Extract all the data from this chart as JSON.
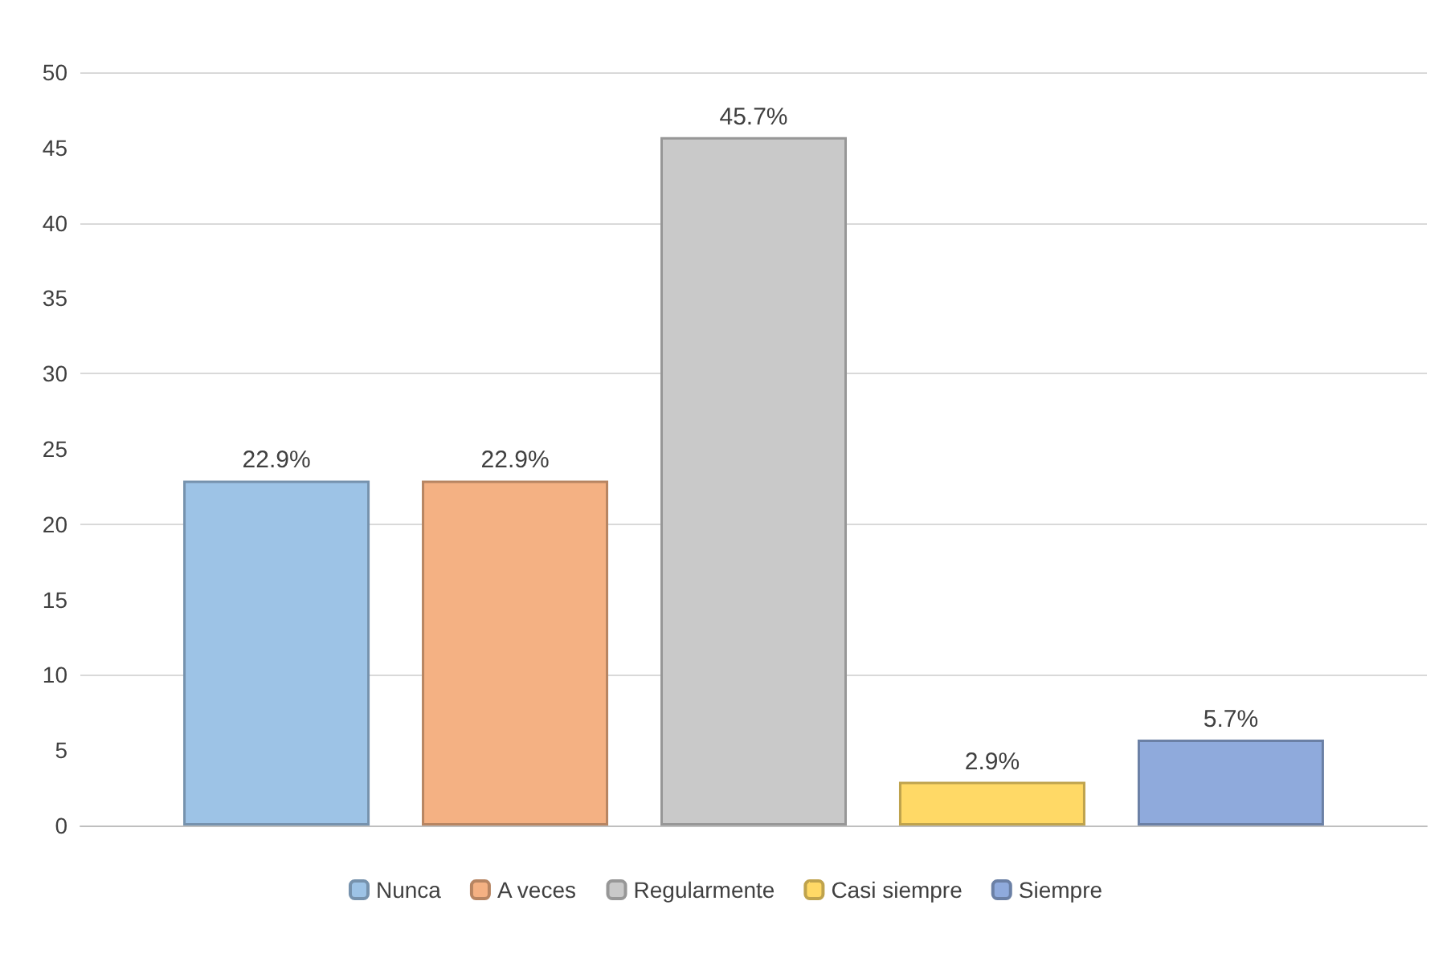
{
  "chart_data": {
    "type": "bar",
    "categories": [
      null
    ],
    "series": [
      {
        "name": "Nunca",
        "color": "#9dc3e6",
        "values": [
          22.9
        ],
        "value_labels": [
          "22.9%"
        ]
      },
      {
        "name": "A veces",
        "color": "#f4b183",
        "values": [
          22.9
        ],
        "value_labels": [
          "22.9%"
        ]
      },
      {
        "name": "Regularmente",
        "color": "#c9c9c9",
        "values": [
          45.7
        ],
        "value_labels": [
          "45.7%"
        ]
      },
      {
        "name": "Casi siempre",
        "color": "#ffd966",
        "values": [
          2.9
        ],
        "value_labels": [
          "2.9%"
        ]
      },
      {
        "name": "Siempre",
        "color": "#8faadc",
        "values": [
          5.7
        ],
        "value_labels": [
          "5.7%"
        ]
      }
    ],
    "ylim": [
      0,
      50
    ],
    "yticks": [
      0,
      5,
      10,
      15,
      20,
      25,
      30,
      35,
      40,
      45,
      50
    ],
    "grid": "y",
    "legend": "bottom"
  }
}
